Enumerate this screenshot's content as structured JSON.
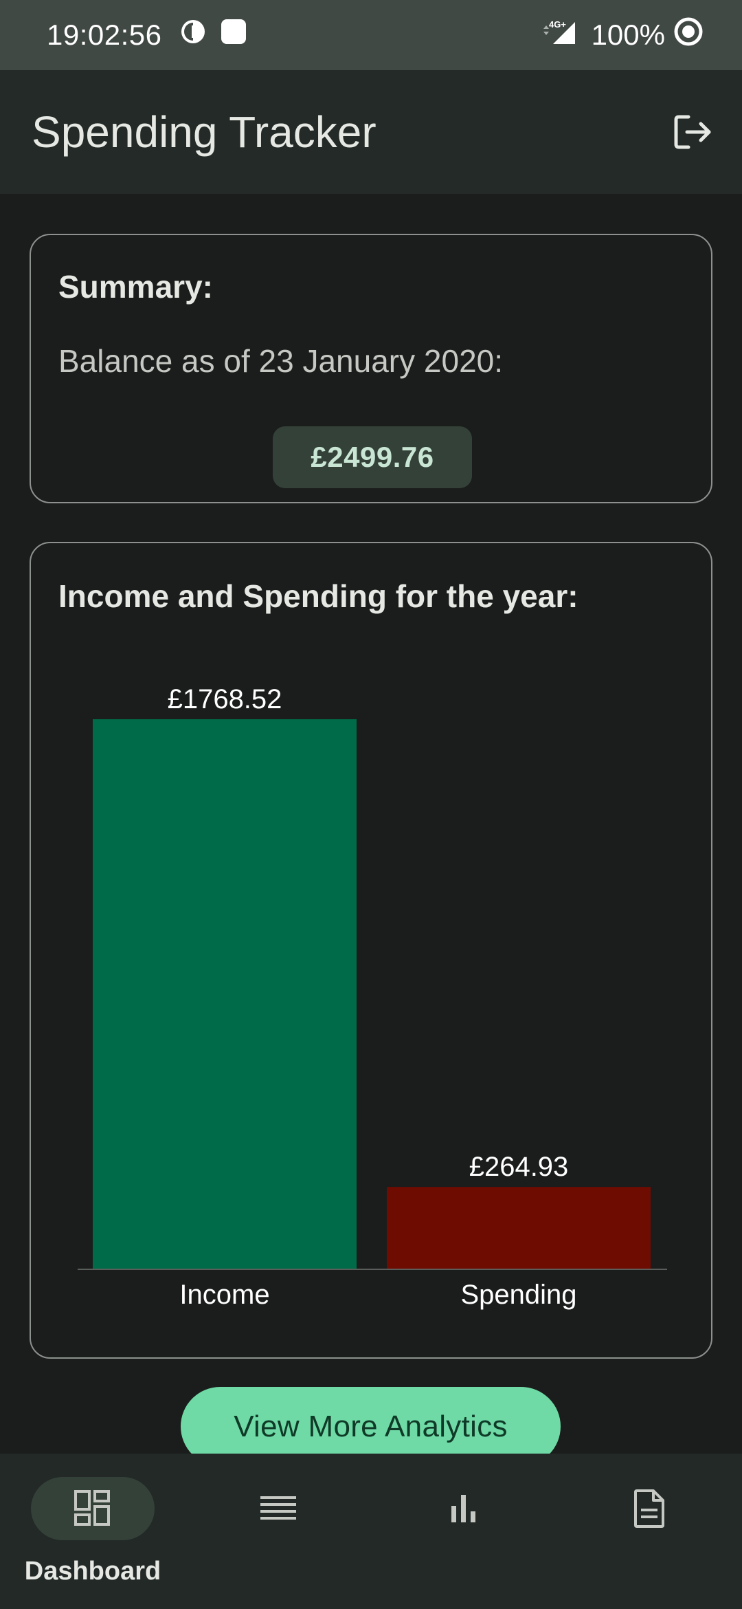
{
  "status_bar": {
    "time": "19:02:56",
    "network": "4G+",
    "battery": "100%"
  },
  "app_bar": {
    "title": "Spending Tracker",
    "logout_icon": "logout-icon"
  },
  "summary": {
    "title": "Summary:",
    "balance_label": "Balance as of 23 January 2020:",
    "balance_value": "£2499.76"
  },
  "chart_section": {
    "title": "Income and Spending for the year:"
  },
  "chart_data": {
    "type": "bar",
    "title": "",
    "xlabel": "",
    "ylabel": "",
    "categories": [
      "Income",
      "Spending"
    ],
    "values": [
      1768.52,
      264.93
    ],
    "value_labels": [
      "£1768.52",
      "£264.93"
    ],
    "colors": [
      "#006b49",
      "#6e0c02"
    ],
    "ylim": [
      0,
      1768.52
    ],
    "grid": false,
    "legend": "none"
  },
  "cta": {
    "label": "View More Analytics"
  },
  "bottom_nav": {
    "items": [
      {
        "icon": "dashboard-icon",
        "label": "Dashboard",
        "active": true
      },
      {
        "icon": "list-icon",
        "label": "",
        "active": false
      },
      {
        "icon": "bar-chart-icon",
        "label": "",
        "active": false
      },
      {
        "icon": "document-icon",
        "label": "",
        "active": false
      }
    ]
  },
  "colors": {
    "background": "#1b1d1c",
    "app_bar": "#232a27",
    "accent": "#6fdaa6",
    "income": "#006b49",
    "spending": "#6e0c02"
  }
}
